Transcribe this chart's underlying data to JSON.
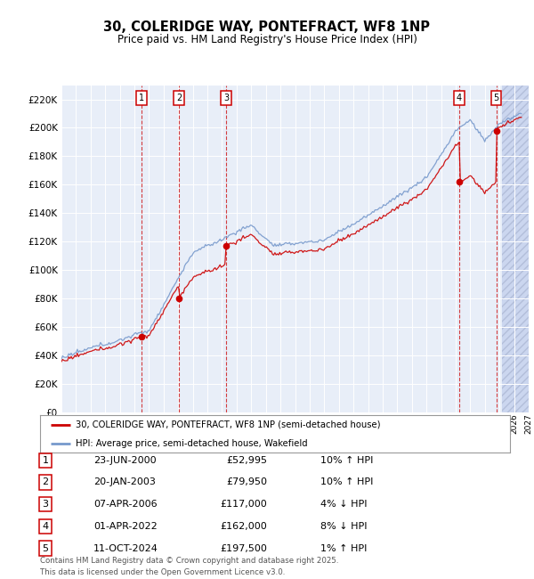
{
  "title": "30, COLERIDGE WAY, PONTEFRACT, WF8 1NP",
  "subtitle": "Price paid vs. HM Land Registry's House Price Index (HPI)",
  "ylim": [
    0,
    230000
  ],
  "yticks": [
    0,
    20000,
    40000,
    60000,
    80000,
    100000,
    120000,
    140000,
    160000,
    180000,
    200000,
    220000
  ],
  "xlim_start": 1995.0,
  "xlim_end": 2027.0,
  "background_color": "#ffffff",
  "plot_bg_color": "#e8eef8",
  "grid_color": "#ffffff",
  "hatch_color": "#c8d4ee",
  "sale_line_color": "#cc0000",
  "hpi_line_color": "#7799cc",
  "sale_dot_color": "#cc0000",
  "transactions": [
    {
      "label": "1",
      "date_str": "23-JUN-2000",
      "year": 2000.47,
      "price": 52995
    },
    {
      "label": "2",
      "date_str": "20-JAN-2003",
      "year": 2003.05,
      "price": 79950
    },
    {
      "label": "3",
      "date_str": "07-APR-2006",
      "year": 2006.27,
      "price": 117000
    },
    {
      "label": "4",
      "date_str": "01-APR-2022",
      "year": 2022.25,
      "price": 162000
    },
    {
      "label": "5",
      "date_str": "11-OCT-2024",
      "year": 2024.78,
      "price": 197500
    }
  ],
  "transaction_notes": [
    "10% ↑ HPI",
    "10% ↑ HPI",
    "4% ↓ HPI",
    "8% ↓ HPI",
    "1% ↑ HPI"
  ],
  "legend_label_sale": "30, COLERIDGE WAY, PONTEFRACT, WF8 1NP (semi-detached house)",
  "legend_label_hpi": "HPI: Average price, semi-detached house, Wakefield",
  "footer": "Contains HM Land Registry data © Crown copyright and database right 2025.\nThis data is licensed under the Open Government Licence v3.0."
}
